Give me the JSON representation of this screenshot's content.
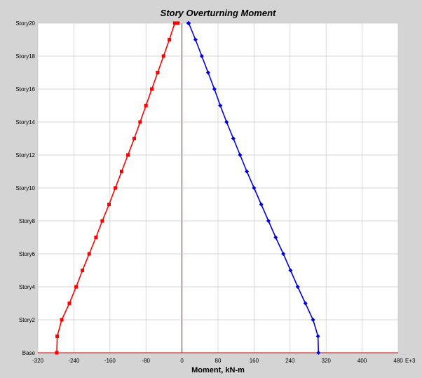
{
  "chart_data": {
    "type": "line",
    "title": "Story Overturning Moment",
    "xlabel": "Moment, kN-m",
    "x_unit_suffix": "E+3",
    "ylabel": "",
    "xlim": [
      -320,
      480
    ],
    "x_ticks": [
      "-320",
      "-240",
      "-160",
      "-80",
      "0",
      "80",
      "160",
      "240",
      "320",
      "400",
      "480"
    ],
    "x_tick_values": [
      -320,
      -240,
      -160,
      -80,
      0,
      80,
      160,
      240,
      320,
      400,
      480
    ],
    "y_categories": [
      "Base",
      "Story1",
      "Story2",
      "Story3",
      "Story4",
      "Story5",
      "Story6",
      "Story7",
      "Story8",
      "Story9",
      "Story10",
      "Story11",
      "Story12",
      "Story13",
      "Story14",
      "Story15",
      "Story16",
      "Story17",
      "Story18",
      "Story19",
      "Story20"
    ],
    "y_tick_labels": [
      "Base",
      "Story2",
      "Story4",
      "Story6",
      "Story8",
      "Story10",
      "Story12",
      "Story14",
      "Story16",
      "Story18",
      "Story20"
    ],
    "y_tick_indices": [
      0,
      2,
      4,
      6,
      8,
      10,
      12,
      14,
      16,
      18,
      20
    ],
    "grid": true,
    "zero_line_color": "#cc0000",
    "series": [
      {
        "color": "#ff0000",
        "marker": "square",
        "points": [
          {
            "level": 0,
            "x": -278
          },
          {
            "level": 1,
            "x": -277
          },
          {
            "level": 2,
            "x": -267
          },
          {
            "level": 3,
            "x": -250
          },
          {
            "level": 4,
            "x": -235
          },
          {
            "level": 5,
            "x": -221
          },
          {
            "level": 6,
            "x": -206
          },
          {
            "level": 7,
            "x": -191
          },
          {
            "level": 8,
            "x": -177
          },
          {
            "level": 9,
            "x": -162
          },
          {
            "level": 10,
            "x": -148
          },
          {
            "level": 11,
            "x": -134
          },
          {
            "level": 12,
            "x": -120
          },
          {
            "level": 13,
            "x": -106
          },
          {
            "level": 14,
            "x": -93
          },
          {
            "level": 15,
            "x": -80
          },
          {
            "level": 16,
            "x": -67
          },
          {
            "level": 17,
            "x": -54
          },
          {
            "level": 18,
            "x": -41
          },
          {
            "level": 19,
            "x": -28
          },
          {
            "level": 20,
            "x": -16
          },
          {
            "level": 20,
            "x": -9
          }
        ]
      },
      {
        "color": "#0000e0",
        "marker": "diamond",
        "points": [
          {
            "level": 0,
            "x": 303
          },
          {
            "level": 1,
            "x": 302
          },
          {
            "level": 2,
            "x": 291
          },
          {
            "level": 3,
            "x": 274
          },
          {
            "level": 4,
            "x": 257
          },
          {
            "level": 5,
            "x": 241
          },
          {
            "level": 6,
            "x": 225
          },
          {
            "level": 7,
            "x": 208
          },
          {
            "level": 8,
            "x": 192
          },
          {
            "level": 9,
            "x": 176
          },
          {
            "level": 10,
            "x": 160
          },
          {
            "level": 11,
            "x": 144
          },
          {
            "level": 12,
            "x": 129
          },
          {
            "level": 13,
            "x": 114
          },
          {
            "level": 14,
            "x": 99
          },
          {
            "level": 15,
            "x": 85
          },
          {
            "level": 16,
            "x": 72
          },
          {
            "level": 17,
            "x": 58
          },
          {
            "level": 18,
            "x": 44
          },
          {
            "level": 19,
            "x": 30
          },
          {
            "level": 20,
            "x": 15
          },
          {
            "level": 20,
            "x": 14
          }
        ]
      }
    ]
  }
}
